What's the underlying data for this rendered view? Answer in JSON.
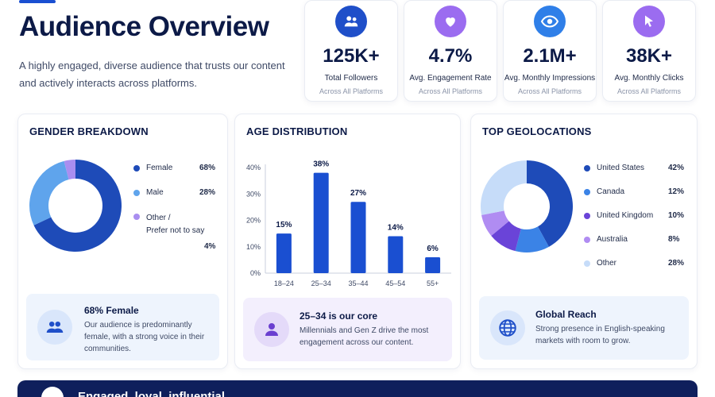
{
  "header": {
    "title": "Audience Overview",
    "subtitle": "A highly engaged, diverse audience that trusts our content and actively interacts across platforms."
  },
  "stats": [
    {
      "value": "125K+",
      "label": "Total Followers",
      "sub": "Across All Platforms",
      "icon": "users-icon",
      "color": "#1f4fc9"
    },
    {
      "value": "4.7%",
      "label": "Avg. Engagement Rate",
      "sub": "Across All Platforms",
      "icon": "heart-icon",
      "color": "#9b6cf0"
    },
    {
      "value": "2.1M+",
      "label": "Avg. Monthly Impressions",
      "sub": "Across All Platforms",
      "icon": "eye-icon",
      "color": "#2f7fe8"
    },
    {
      "value": "38K+",
      "label": "Avg. Monthly Clicks",
      "sub": "Across All Platforms",
      "icon": "cursor-icon",
      "color": "#9b6cf0"
    }
  ],
  "gender": {
    "title": "GENDER BREAKDOWN",
    "items": [
      {
        "label": "Female",
        "pct": "68%",
        "value": 68,
        "color": "#1e4bb8"
      },
      {
        "label": "Male",
        "pct": "28%",
        "value": 28,
        "color": "#5fa4ec"
      },
      {
        "label": "Other /",
        "label2": "Prefer not to say",
        "pct": "4%",
        "value": 4,
        "color": "#a98ef0"
      }
    ],
    "insight": {
      "title": "68% Female",
      "text": "Our audience is predominantly female, with a strong voice in their communities.",
      "icon": "users-icon"
    }
  },
  "age": {
    "title": "AGE DISTRIBUTION",
    "insight": {
      "title": "25–34 is our core",
      "text": "Millennials and Gen Z drive the most engagement across our content.",
      "icon": "person-icon"
    }
  },
  "geo": {
    "title": "TOP GEOLOCATIONS",
    "items": [
      {
        "label": "United States",
        "pct": "42%",
        "value": 42,
        "color": "#1e4bb8"
      },
      {
        "label": "Canada",
        "pct": "12%",
        "value": 12,
        "color": "#3b83e6"
      },
      {
        "label": "United Kingdom",
        "pct": "10%",
        "value": 10,
        "color": "#6a44d8"
      },
      {
        "label": "Australia",
        "pct": "8%",
        "value": 8,
        "color": "#b08cf2"
      },
      {
        "label": "Other",
        "pct": "28%",
        "value": 28,
        "color": "#c6dcf9"
      }
    ],
    "insight": {
      "title": "Global Reach",
      "text": "Strong presence in English-speaking markets with room to grow.",
      "icon": "globe-icon"
    }
  },
  "banner": {
    "text": "Engaged, loyal, influential",
    "icon": "star-icon"
  },
  "chart_data": [
    {
      "type": "pie",
      "categories": [
        "Female",
        "Male",
        "Other / Prefer not to say"
      ],
      "values": [
        68,
        28,
        4
      ],
      "title": "GENDER BREAKDOWN"
    },
    {
      "type": "bar",
      "categories": [
        "18–24",
        "25–34",
        "35–44",
        "45–54",
        "55+"
      ],
      "values": [
        15,
        38,
        27,
        14,
        6
      ],
      "value_labels": [
        "15%",
        "38%",
        "27%",
        "14%",
        "6%"
      ],
      "title": "AGE DISTRIBUTION",
      "ylim": [
        0,
        40
      ],
      "yticks": [
        "0%",
        "10%",
        "20%",
        "30%",
        "40%"
      ],
      "color": "#1a4fd1"
    },
    {
      "type": "pie",
      "categories": [
        "United States",
        "Canada",
        "United Kingdom",
        "Australia",
        "Other"
      ],
      "values": [
        42,
        12,
        10,
        8,
        28
      ],
      "title": "TOP GEOLOCATIONS"
    }
  ]
}
